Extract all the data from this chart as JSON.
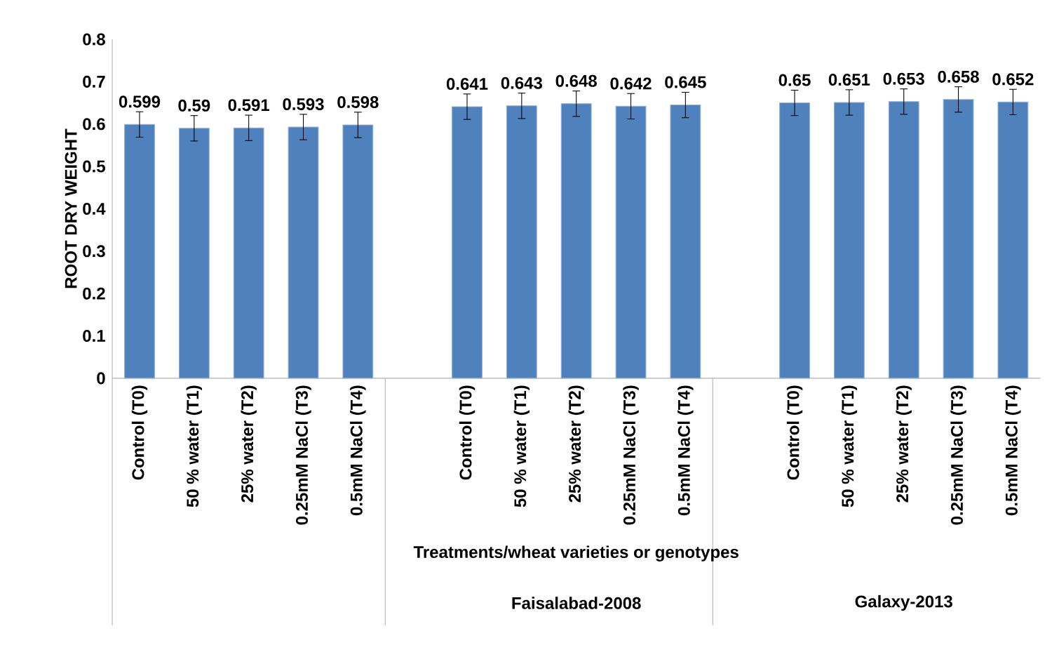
{
  "chart_data": {
    "type": "bar",
    "ylabel": "ROOT DRY WEIGHT",
    "xlabel": "Treatments/wheat varieties or genotypes",
    "categories": [
      "Control (T0)",
      "50 % water (T1)",
      "25% water (T2)",
      "0.25mM NaCl (T3)",
      "0.5mM NaCl (T4)",
      null,
      "Control (T0)",
      "50 % water (T1)",
      "25% water (T2)",
      "0.25mM NaCl (T3)",
      "0.5mM NaCl (T4)",
      null,
      "Control (T0)",
      "50 % water (T1)",
      "25% water (T2)",
      "0.25mM NaCl (T3)",
      "0.5mM NaCl (T4)"
    ],
    "values": [
      0.599,
      0.59,
      0.591,
      0.593,
      0.598,
      null,
      0.641,
      0.643,
      0.648,
      0.642,
      0.645,
      null,
      0.65,
      0.651,
      0.653,
      0.658,
      0.652
    ],
    "errors": [
      0.03,
      0.03,
      0.03,
      0.03,
      0.03,
      null,
      0.03,
      0.03,
      0.03,
      0.03,
      0.03,
      null,
      0.03,
      0.03,
      0.03,
      0.03,
      0.03
    ],
    "color": "#4f81bd",
    "data_labels": true,
    "annotations": [
      "Faisalabad-2008",
      "Galaxy-2013"
    ],
    "ylim": [
      0,
      0.8
    ],
    "yticks": [
      0,
      0.1,
      0.2,
      0.3,
      0.4,
      0.5,
      0.6,
      0.7,
      0.8
    ],
    "grid": false
  }
}
